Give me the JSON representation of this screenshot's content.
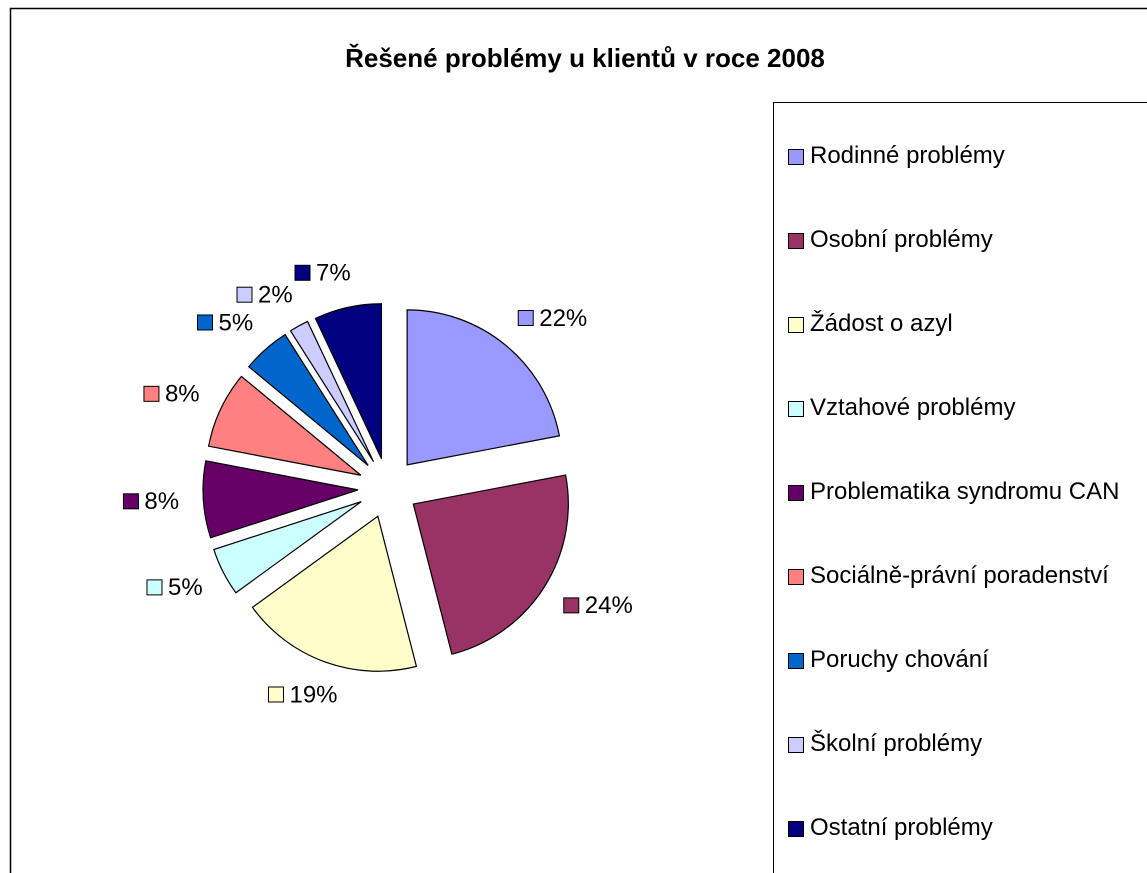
{
  "chart_data": {
    "type": "pie",
    "title": "Řešené problémy u klientů v roce 2008",
    "categories": [
      "Rodinné problémy",
      "Osobní problémy",
      "Žádost o azyl",
      "Vztahové problémy",
      "Problematika syndromu CAN",
      "Sociálně-právní poradenství",
      "Poruchy chování",
      "Školní problémy",
      "Ostatní problémy"
    ],
    "values": [
      22,
      24,
      19,
      5,
      8,
      8,
      5,
      2,
      7
    ],
    "value_labels": [
      "22%",
      "24%",
      "19%",
      "5%",
      "8%",
      "8%",
      "5%",
      "2%",
      "7%"
    ],
    "colors": [
      "#9999ff",
      "#993366",
      "#ffffcc",
      "#ccffff",
      "#660066",
      "#ff8080",
      "#0066cc",
      "#ccccff",
      "#000080"
    ],
    "legend": "right"
  }
}
